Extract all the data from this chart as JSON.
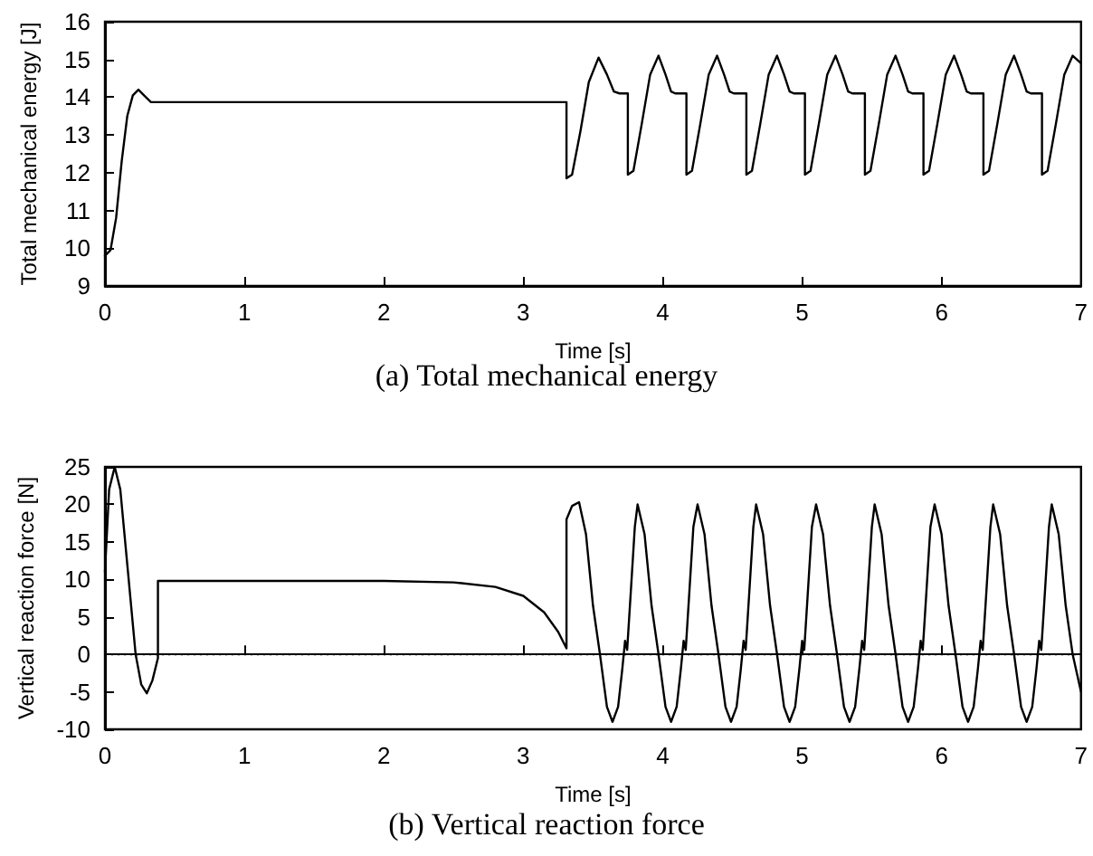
{
  "chart_data": [
    {
      "type": "line",
      "title": "(a) Total mechanical energy",
      "xlabel": "Time [s]",
      "ylabel": "Total mechanical energy [J]",
      "xlim": [
        0,
        7
      ],
      "xticks": [
        0,
        1,
        2,
        3,
        4,
        5,
        6,
        7
      ],
      "ylim": [
        9,
        16
      ],
      "yticks": [
        9,
        10,
        11,
        12,
        13,
        14,
        15,
        16
      ],
      "grid": false,
      "marker": "none",
      "line_style": "solid",
      "series": [
        {
          "color": "#000000",
          "x": [
            0,
            0.04,
            0.08,
            0.12,
            0.16,
            0.2,
            0.24,
            0.28,
            0.33,
            3.31,
            3.31,
            3.35,
            3.41,
            3.47,
            3.54,
            3.6,
            3.65,
            3.69,
            3.75,
            3.75,
            3.79,
            3.85,
            3.91,
            3.97,
            4.02,
            4.06,
            4.09,
            4.17,
            4.17,
            4.21,
            4.27,
            4.33,
            4.39,
            4.44,
            4.48,
            4.51,
            4.6,
            4.6,
            4.64,
            4.7,
            4.76,
            4.82,
            4.87,
            4.91,
            4.94,
            5.02,
            5.02,
            5.06,
            5.12,
            5.18,
            5.24,
            5.29,
            5.33,
            5.36,
            5.45,
            5.45,
            5.49,
            5.55,
            5.61,
            5.67,
            5.72,
            5.76,
            5.79,
            5.87,
            5.87,
            5.91,
            5.97,
            6.03,
            6.09,
            6.14,
            6.18,
            6.21,
            6.3,
            6.3,
            6.34,
            6.4,
            6.46,
            6.52,
            6.57,
            6.61,
            6.64,
            6.72,
            6.72,
            6.76,
            6.82,
            6.88,
            6.94,
            7.0
          ],
          "values": [
            9.8,
            9.95,
            10.8,
            12.3,
            13.5,
            14.05,
            14.2,
            14.05,
            13.87,
            13.87,
            11.85,
            11.95,
            13.1,
            14.4,
            15.05,
            14.6,
            14.15,
            14.1,
            14.1,
            11.95,
            12.05,
            13.3,
            14.6,
            15.1,
            14.6,
            14.15,
            14.1,
            14.1,
            11.95,
            12.05,
            13.3,
            14.6,
            15.1,
            14.6,
            14.15,
            14.1,
            14.1,
            11.95,
            12.05,
            13.3,
            14.6,
            15.1,
            14.6,
            14.15,
            14.1,
            14.1,
            11.95,
            12.05,
            13.3,
            14.6,
            15.1,
            14.6,
            14.15,
            14.1,
            14.1,
            11.95,
            12.05,
            13.3,
            14.6,
            15.1,
            14.6,
            14.15,
            14.1,
            14.1,
            11.95,
            12.05,
            13.3,
            14.6,
            15.1,
            14.6,
            14.15,
            14.1,
            14.1,
            11.95,
            12.05,
            13.3,
            14.6,
            15.1,
            14.6,
            14.15,
            14.1,
            14.1,
            11.95,
            12.05,
            13.3,
            14.6,
            15.1,
            14.9
          ]
        }
      ]
    },
    {
      "type": "line",
      "title": "(b) Vertical reaction force",
      "xlabel": "Time [s]",
      "ylabel": "Vertical reaction force [N]",
      "xlim": [
        0,
        7
      ],
      "xticks": [
        0,
        1,
        2,
        3,
        4,
        5,
        6,
        7
      ],
      "ylim": [
        -10,
        25
      ],
      "yticks": [
        -10,
        -5,
        0,
        5,
        10,
        15,
        20,
        25
      ],
      "grid": false,
      "marker": "none",
      "line_style": "solid",
      "ref_lines": [
        {
          "axis": "y",
          "value": 0,
          "line_style": "dotted",
          "color": "#000000"
        }
      ],
      "series": [
        {
          "color": "#000000",
          "x": [
            0,
            0.03,
            0.07,
            0.11,
            0.16,
            0.22,
            0.26,
            0.3,
            0.34,
            0.38,
            0.38,
            2.0,
            2.5,
            2.8,
            3.0,
            3.15,
            3.25,
            3.31,
            3.31,
            3.35,
            3.4,
            3.45,
            3.5,
            3.55,
            3.6,
            3.64,
            3.68,
            3.71,
            3.73,
            3.745,
            3.77,
            3.8,
            3.82,
            3.87,
            3.92,
            3.97,
            4.02,
            4.06,
            4.1,
            4.13,
            4.15,
            4.165,
            4.19,
            4.22,
            4.25,
            4.3,
            4.35,
            4.4,
            4.45,
            4.49,
            4.53,
            4.56,
            4.58,
            4.595,
            4.62,
            4.65,
            4.67,
            4.72,
            4.77,
            4.82,
            4.87,
            4.91,
            4.95,
            4.98,
            5.0,
            5.015,
            5.04,
            5.07,
            5.1,
            5.15,
            5.2,
            5.25,
            5.3,
            5.34,
            5.38,
            5.41,
            5.43,
            5.445,
            5.47,
            5.5,
            5.52,
            5.57,
            5.62,
            5.67,
            5.72,
            5.76,
            5.8,
            5.83,
            5.85,
            5.865,
            5.89,
            5.92,
            5.95,
            6.0,
            6.05,
            6.1,
            6.15,
            6.19,
            6.23,
            6.26,
            6.28,
            6.295,
            6.32,
            6.35,
            6.37,
            6.42,
            6.47,
            6.52,
            6.57,
            6.61,
            6.65,
            6.68,
            6.7,
            6.715,
            6.74,
            6.77,
            6.79,
            6.84,
            6.89,
            6.94,
            7.0
          ],
          "values": [
            11,
            22,
            25,
            22,
            12,
            0,
            -4,
            -5.2,
            -3.5,
            -0.5,
            9.8,
            9.8,
            9.6,
            9.0,
            7.8,
            5.6,
            3.0,
            0.8,
            18,
            19.8,
            20.3,
            16,
            6.5,
            0,
            -7,
            -9,
            -7,
            -2,
            1.8,
            0.6,
            8,
            17,
            20,
            16,
            6.5,
            0,
            -7,
            -9,
            -7,
            -2,
            1.8,
            0.6,
            8,
            17,
            20,
            16,
            6.5,
            0,
            -7,
            -9,
            -7,
            -2,
            1.8,
            0.6,
            8,
            17,
            20,
            16,
            6.5,
            0,
            -7,
            -9,
            -7,
            -2,
            1.8,
            0.6,
            8,
            17,
            20,
            16,
            6.5,
            0,
            -7,
            -9,
            -7,
            -2,
            1.8,
            0.6,
            8,
            17,
            20,
            16,
            6.5,
            0,
            -7,
            -9,
            -7,
            -2,
            1.8,
            0.6,
            8,
            17,
            20,
            16,
            6.5,
            0,
            -7,
            -9,
            -7,
            -2,
            1.8,
            0.6,
            8,
            17,
            20,
            16,
            6.5,
            0,
            -7,
            -9,
            -7,
            -2,
            1.8,
            0.6,
            8,
            17,
            20,
            16,
            6.5,
            0,
            -5
          ]
        }
      ]
    }
  ]
}
